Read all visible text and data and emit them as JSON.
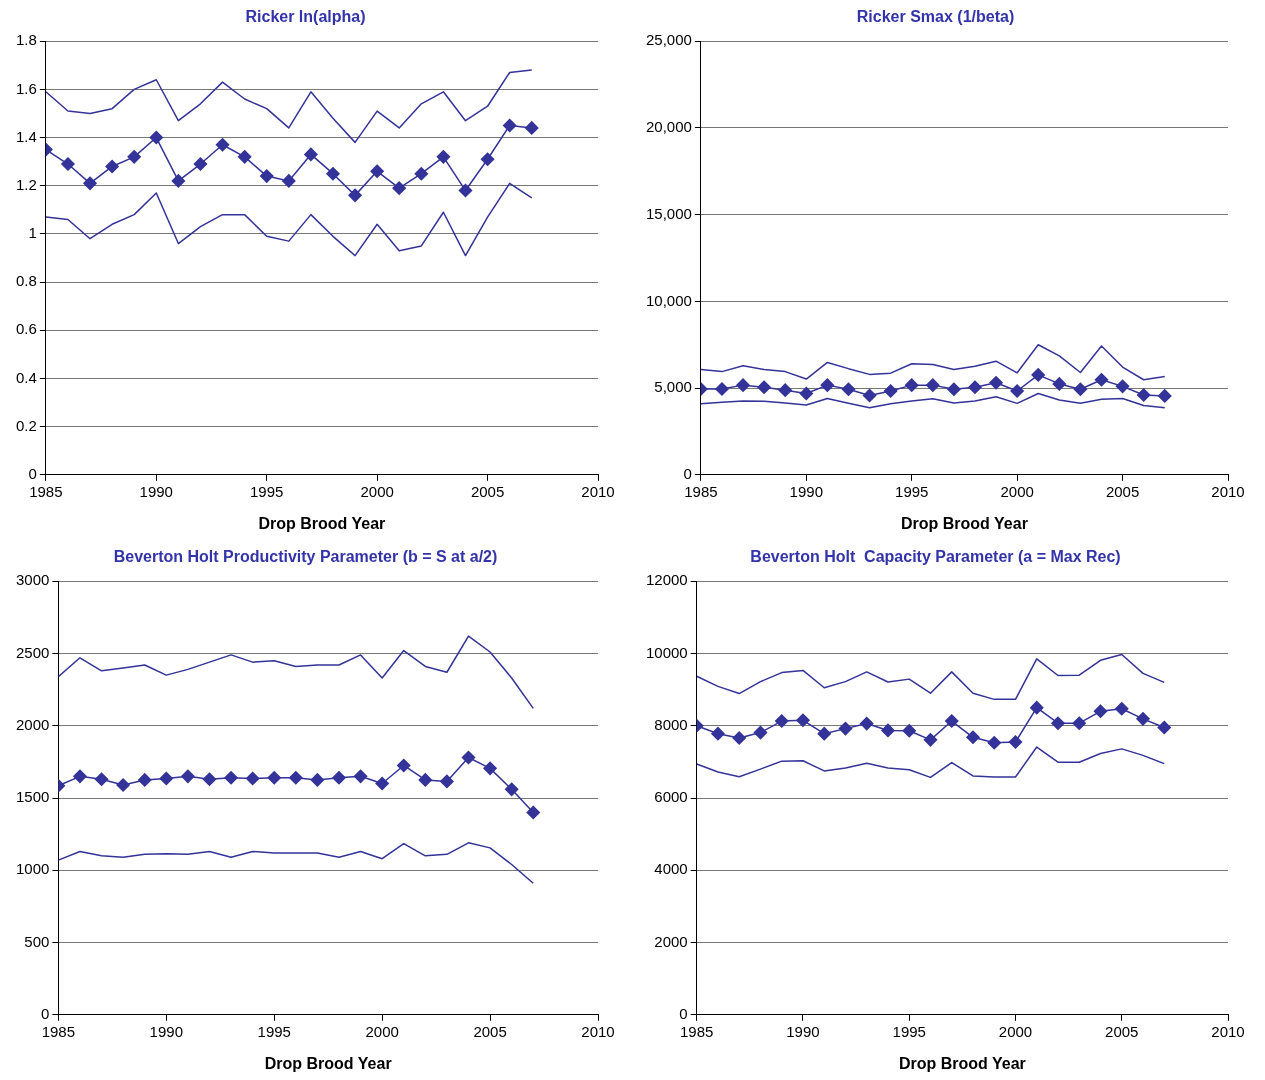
{
  "chart_data": [
    {
      "type": "line",
      "title": "Ricker ln(alpha)",
      "xlabel": "Drop Brood Year",
      "x": [
        1985,
        1986,
        1987,
        1988,
        1989,
        1990,
        1991,
        1992,
        1993,
        1994,
        1995,
        1996,
        1997,
        1998,
        1999,
        2000,
        2001,
        2002,
        2003,
        2004,
        2005,
        2006,
        2007
      ],
      "xlim": [
        1985,
        2010
      ],
      "xticks": [
        1985,
        1990,
        1995,
        2000,
        2005,
        2010
      ],
      "ylim": [
        0,
        1.8
      ],
      "yticks": [
        0,
        0.2,
        0.4,
        0.6,
        0.8,
        1,
        1.2,
        1.4,
        1.6,
        1.8
      ],
      "grid": "y",
      "series": [
        {
          "color": "#333399",
          "marker": "none",
          "values": [
            1.59,
            1.51,
            1.5,
            1.52,
            1.6,
            1.64,
            1.47,
            1.54,
            1.63,
            1.56,
            1.52,
            1.44,
            1.59,
            1.48,
            1.38,
            1.51,
            1.44,
            1.54,
            1.59,
            1.47,
            1.53,
            1.67,
            1.68
          ]
        },
        {
          "color": "#333399",
          "marker": "diamond",
          "values": [
            1.35,
            1.29,
            1.21,
            1.28,
            1.32,
            1.4,
            1.22,
            1.29,
            1.37,
            1.32,
            1.24,
            1.22,
            1.33,
            1.25,
            1.16,
            1.26,
            1.19,
            1.25,
            1.32,
            1.18,
            1.31,
            1.45,
            1.44
          ]
        },
        {
          "color": "#333399",
          "marker": "none",
          "values": [
            1.07,
            1.06,
            0.98,
            1.04,
            1.08,
            1.17,
            0.96,
            1.03,
            1.08,
            1.08,
            0.99,
            0.97,
            1.08,
            0.99,
            0.91,
            1.04,
            0.93,
            0.95,
            1.09,
            0.91,
            1.07,
            1.21,
            1.15
          ]
        }
      ]
    },
    {
      "type": "line",
      "title": "Ricker Smax (1/beta)",
      "xlabel": "Drop Brood Year",
      "x": [
        1985,
        1986,
        1987,
        1988,
        1989,
        1990,
        1991,
        1992,
        1993,
        1994,
        1995,
        1996,
        1997,
        1998,
        1999,
        2000,
        2001,
        2002,
        2003,
        2004,
        2005,
        2006,
        2007
      ],
      "xlim": [
        1985,
        2010
      ],
      "xticks": [
        1985,
        1990,
        1995,
        2000,
        2005,
        2010
      ],
      "ylim": [
        0,
        25000
      ],
      "yticks": [
        0,
        {
          "value": 5000,
          "label": "5,000"
        },
        {
          "value": 10000,
          "label": "10,000"
        },
        {
          "value": 15000,
          "label": "15,000"
        },
        {
          "value": 20000,
          "label": "20,000"
        },
        {
          "value": 25000,
          "label": "25,000"
        }
      ],
      "grid": "y",
      "series": [
        {
          "color": "#333399",
          "marker": "none",
          "values": [
            6070,
            5950,
            6290,
            6070,
            5950,
            5520,
            6480,
            6120,
            5790,
            5860,
            6400,
            6360,
            6070,
            6260,
            6550,
            5880,
            7500,
            6860,
            5900,
            7430,
            6210,
            5480,
            5670
          ]
        },
        {
          "color": "#333399",
          "marker": "diamond",
          "values": [
            4950,
            4950,
            5170,
            5050,
            4880,
            4690,
            5170,
            4930,
            4570,
            4830,
            5170,
            5170,
            4930,
            5050,
            5310,
            4830,
            5760,
            5240,
            4930,
            5480,
            5100,
            4600,
            4550
          ]
        },
        {
          "color": "#333399",
          "marker": "none",
          "values": [
            4100,
            4190,
            4260,
            4240,
            4140,
            4020,
            4400,
            4120,
            3860,
            4100,
            4260,
            4380,
            4140,
            4260,
            4500,
            4120,
            4690,
            4310,
            4120,
            4360,
            4400,
            4000,
            3860
          ]
        }
      ]
    },
    {
      "type": "line",
      "title": "Beverton Holt Productivity Parameter (b = S at a/2)",
      "xlabel": "Drop Brood Year",
      "x": [
        1985,
        1986,
        1987,
        1988,
        1989,
        1990,
        1991,
        1992,
        1993,
        1994,
        1995,
        1996,
        1997,
        1998,
        1999,
        2000,
        2001,
        2002,
        2003,
        2004,
        2005,
        2006,
        2007
      ],
      "xlim": [
        1985,
        2010
      ],
      "xticks": [
        1985,
        1990,
        1995,
        2000,
        2005,
        2010
      ],
      "ylim": [
        0,
        3000
      ],
      "yticks": [
        0,
        500,
        1000,
        1500,
        2000,
        2500,
        3000
      ],
      "grid": "y",
      "series": [
        {
          "color": "#333399",
          "marker": "none",
          "values": [
            2340,
            2470,
            2380,
            2400,
            2420,
            2350,
            2390,
            2440,
            2490,
            2440,
            2450,
            2410,
            2420,
            2420,
            2490,
            2330,
            2520,
            2410,
            2370,
            2620,
            2510,
            2330,
            2120
          ]
        },
        {
          "color": "#333399",
          "marker": "diamond",
          "values": [
            1585,
            1650,
            1630,
            1590,
            1625,
            1635,
            1650,
            1630,
            1640,
            1635,
            1640,
            1640,
            1625,
            1640,
            1650,
            1600,
            1725,
            1625,
            1615,
            1780,
            1705,
            1560,
            1400
          ]
        },
        {
          "color": "#333399",
          "marker": "none",
          "values": [
            1070,
            1130,
            1100,
            1090,
            1110,
            1115,
            1110,
            1130,
            1090,
            1130,
            1120,
            1120,
            1120,
            1090,
            1130,
            1080,
            1185,
            1100,
            1110,
            1190,
            1155,
            1040,
            910
          ]
        }
      ]
    },
    {
      "type": "line",
      "title": "Beverton Holt  Capacity Parameter (a = Max Rec)",
      "xlabel": "Drop Brood Year",
      "x": [
        1985,
        1986,
        1987,
        1988,
        1989,
        1990,
        1991,
        1992,
        1993,
        1994,
        1995,
        1996,
        1997,
        1998,
        1999,
        2000,
        2001,
        2002,
        2003,
        2004,
        2005,
        2006,
        2007
      ],
      "xlim": [
        1985,
        2010
      ],
      "xticks": [
        1985,
        1990,
        1995,
        2000,
        2005,
        2010
      ],
      "ylim": [
        0,
        12000
      ],
      "yticks": [
        0,
        2000,
        4000,
        6000,
        8000,
        10000,
        12000
      ],
      "grid": "y",
      "series": [
        {
          "color": "#333399",
          "marker": "none",
          "values": [
            9370,
            9090,
            8890,
            9220,
            9470,
            9530,
            9050,
            9220,
            9490,
            9210,
            9290,
            8900,
            9490,
            8900,
            8730,
            8730,
            9850,
            9390,
            9400,
            9810,
            9970,
            9450,
            9200
          ]
        },
        {
          "color": "#333399",
          "marker": "diamond",
          "values": [
            8000,
            7780,
            7660,
            7810,
            8130,
            8150,
            7780,
            7920,
            8060,
            7870,
            7860,
            7610,
            8130,
            7680,
            7530,
            7550,
            8500,
            8070,
            8070,
            8400,
            8470,
            8190,
            7950
          ]
        },
        {
          "color": "#333399",
          "marker": "none",
          "values": [
            6940,
            6720,
            6590,
            6800,
            7020,
            7030,
            6750,
            6830,
            6960,
            6830,
            6780,
            6570,
            6980,
            6610,
            6580,
            6580,
            7410,
            6990,
            6990,
            7230,
            7360,
            7180,
            6950
          ]
        }
      ]
    }
  ]
}
